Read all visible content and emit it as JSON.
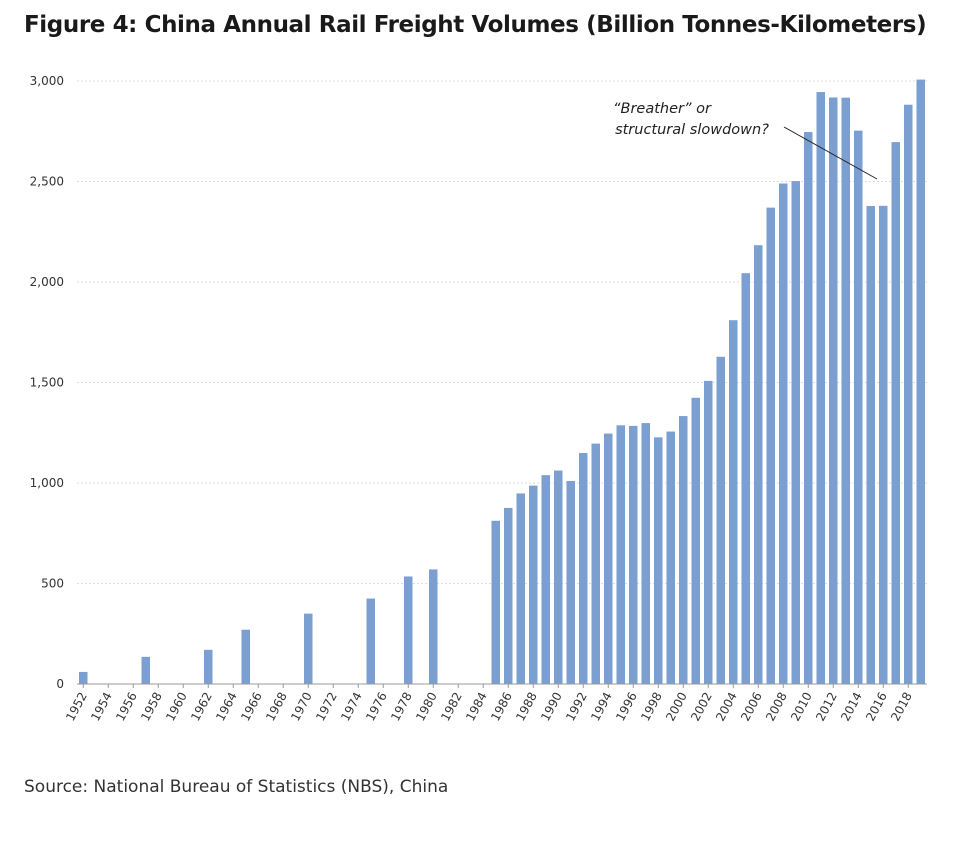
{
  "title": "Figure 4: China Annual Rail Freight Volumes (Billion Tonnes-Kilometers)",
  "source": "Source: National Bureau of Statistics (NBS), China",
  "chart_data": {
    "type": "bar",
    "title": "Figure 4: China Annual Rail Freight Volumes (Billion Tonnes-Kilometers)",
    "xlabel": "",
    "ylabel": "",
    "ylim": [
      0,
      3000
    ],
    "yticks": [
      0,
      500,
      1000,
      1500,
      2000,
      2500,
      3000
    ],
    "ytick_labels": [
      "0",
      "500",
      "1,000",
      "1,500",
      "2,000",
      "2,500",
      "3,000"
    ],
    "xtick_labels": [
      "1952",
      "1954",
      "1956",
      "1958",
      "1960",
      "1962",
      "1964",
      "1966",
      "1968",
      "1970",
      "1972",
      "1974",
      "1976",
      "1978",
      "1980",
      "1982",
      "1984",
      "1986",
      "1988",
      "1990",
      "1992",
      "1994",
      "1996",
      "1998",
      "2000",
      "2002",
      "2004",
      "2006",
      "2008",
      "2010",
      "2012",
      "2014",
      "2016",
      "2018"
    ],
    "grid": true,
    "bar_color": "#7a9fd0",
    "series": [
      {
        "x": [
          1952,
          1957,
          1962,
          1965,
          1970,
          1975,
          1978,
          1980,
          1985,
          1986,
          1987,
          1988,
          1989,
          1990,
          1991,
          1992,
          1993,
          1994,
          1995,
          1996,
          1997,
          1998,
          1999,
          2000,
          2001,
          2002,
          2003,
          2004,
          2005,
          2006,
          2007,
          2008,
          2009,
          2010,
          2011,
          2012,
          2013,
          2014,
          2015,
          2016,
          2017,
          2018,
          2019
        ],
        "values": [
          60,
          135,
          170,
          270,
          350,
          425,
          535,
          570,
          812,
          876,
          948,
          987,
          1039,
          1062,
          1010,
          1149,
          1196,
          1246,
          1287,
          1284,
          1298,
          1227,
          1256,
          1333,
          1424,
          1508,
          1628,
          1810,
          2044,
          2183,
          2370,
          2490,
          2502,
          2746,
          2945,
          2918,
          2917,
          2753,
          2378,
          2379,
          2696,
          2882,
          3007
        ]
      }
    ],
    "annotation": {
      "lines": [
        "“Breather” or",
        "structural slowdown?"
      ],
      "points_to_year": 2016
    }
  }
}
